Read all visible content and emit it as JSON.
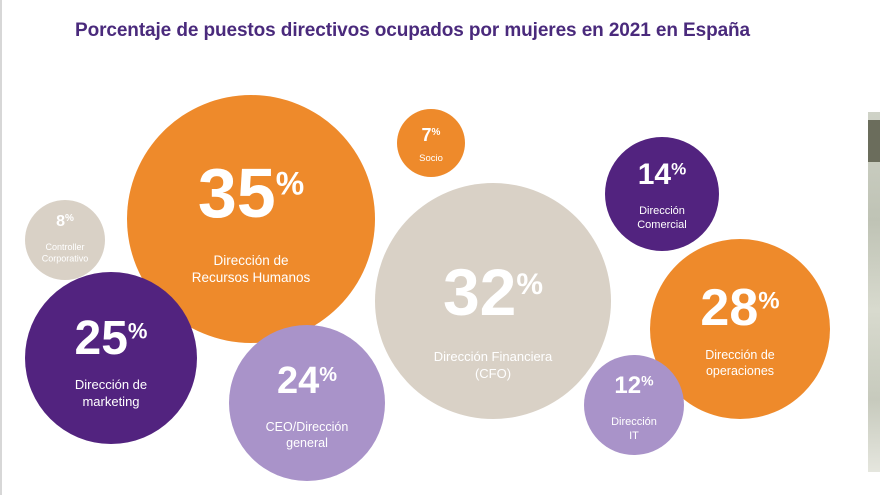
{
  "title": "Porcentaje de puestos directivos ocupados por mujeres en 2021 en España",
  "colors": {
    "orange": "#ee8a2b",
    "purple_dark": "#52237f",
    "purple_light": "#a993c9",
    "gray": "#d9d1c6",
    "title": "#4a2a7c",
    "white": "#ffffff"
  },
  "chart_data": {
    "type": "bubble",
    "title": "Porcentaje de puestos directivos ocupados por mujeres en 2021 en España",
    "unit": "%",
    "points": [
      {
        "id": "rrhh",
        "label": "Dirección de Recursos Humanos",
        "label_lines": [
          "Dirección de",
          "Recursos Humanos"
        ],
        "value": 35,
        "display": "35",
        "color": "orange"
      },
      {
        "id": "cfo",
        "label": "Dirección Financiera (CFO)",
        "label_lines": [
          "Dirección Financiera",
          "(CFO)"
        ],
        "value": 32,
        "display": "32",
        "color": "gray"
      },
      {
        "id": "operaciones",
        "label": "Dirección de operaciones",
        "label_lines": [
          "Dirección de",
          "operaciones"
        ],
        "value": 28,
        "display": "28",
        "color": "orange"
      },
      {
        "id": "marketing",
        "label": "Dirección de marketing",
        "label_lines": [
          "Dirección de",
          "marketing"
        ],
        "value": 25,
        "display": "25",
        "color": "purple_dark"
      },
      {
        "id": "ceo",
        "label": "CEO/Dirección general",
        "label_lines": [
          "CEO/Dirección",
          "general"
        ],
        "value": 24,
        "display": "24",
        "color": "purple_light"
      },
      {
        "id": "comercial",
        "label": "Dirección Comercial",
        "label_lines": [
          "Dirección",
          "Comercial"
        ],
        "value": 14,
        "display": "14",
        "color": "purple_dark"
      },
      {
        "id": "it",
        "label": "Dirección IT",
        "label_lines": [
          "Dirección",
          "IT"
        ],
        "value": 12,
        "display": "12",
        "color": "purple_light"
      },
      {
        "id": "controller",
        "label": "Controller Corporativo",
        "label_lines": [
          "Controller",
          "Corporativo"
        ],
        "value": 8,
        "display": "8",
        "color": "gray"
      },
      {
        "id": "socio",
        "label": "Socio",
        "label_lines": [
          "Socio"
        ],
        "value": 7,
        "display": "7",
        "color": "orange"
      }
    ]
  }
}
